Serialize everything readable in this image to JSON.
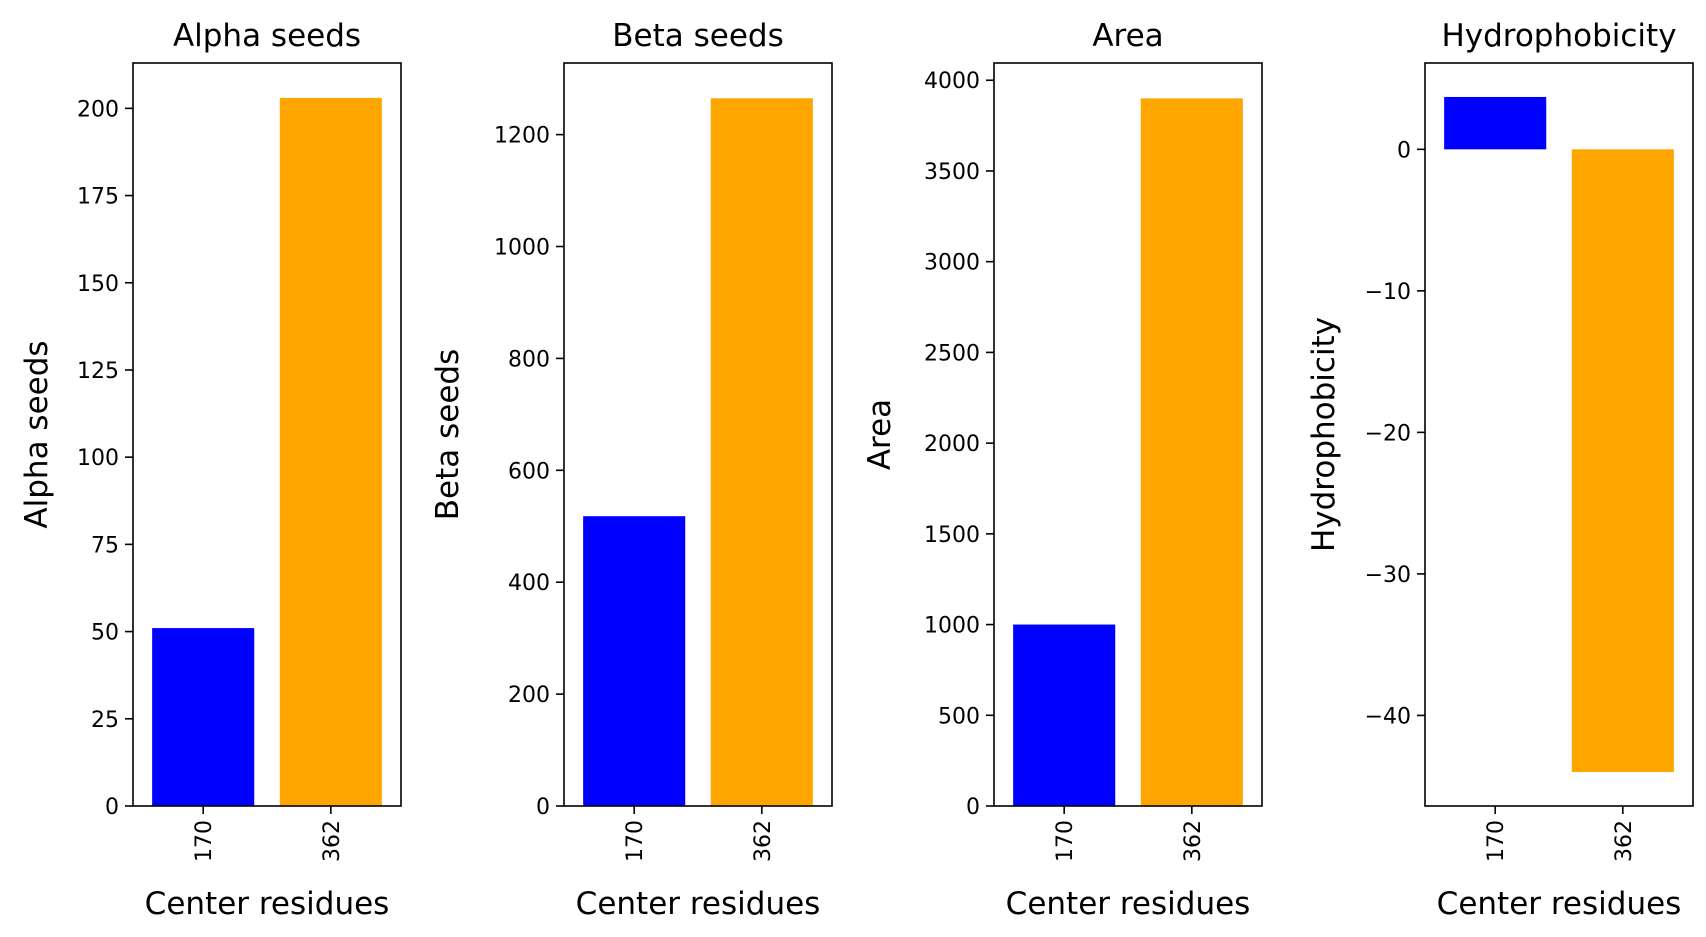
{
  "chart_data": [
    {
      "type": "bar",
      "title": "Alpha seeds",
      "xlabel": "Center residues",
      "ylabel": "Alpha seeds",
      "categories": [
        "170",
        "362"
      ],
      "values": [
        51,
        203
      ],
      "colors": [
        "#0000ff",
        "#ffa500"
      ],
      "ylim": [
        0,
        213
      ],
      "yticks": [
        0,
        25,
        50,
        75,
        100,
        125,
        150,
        175,
        200
      ],
      "ytick_labels": [
        "0",
        "25",
        "50",
        "75",
        "100",
        "125",
        "150",
        "175",
        "200"
      ],
      "grid": false
    },
    {
      "type": "bar",
      "title": "Beta seeds",
      "xlabel": "Center residues",
      "ylabel": "Beta seeds",
      "categories": [
        "170",
        "362"
      ],
      "values": [
        518,
        1265
      ],
      "colors": [
        "#0000ff",
        "#ffa500"
      ],
      "ylim": [
        0,
        1328
      ],
      "yticks": [
        0,
        200,
        400,
        600,
        800,
        1000,
        1200
      ],
      "ytick_labels": [
        "0",
        "200",
        "400",
        "600",
        "800",
        "1000",
        "1200"
      ],
      "grid": false
    },
    {
      "type": "bar",
      "title": "Area",
      "xlabel": "Center residues",
      "ylabel": "Area",
      "categories": [
        "170",
        "362"
      ],
      "values": [
        1000,
        3900
      ],
      "colors": [
        "#0000ff",
        "#ffa500"
      ],
      "ylim": [
        0,
        4095
      ],
      "yticks": [
        0,
        500,
        1000,
        1500,
        2000,
        2500,
        3000,
        3500,
        4000
      ],
      "ytick_labels": [
        "0",
        "500",
        "1000",
        "1500",
        "2000",
        "2500",
        "3000",
        "3500",
        "4000"
      ],
      "grid": false
    },
    {
      "type": "bar",
      "title": "Hydrophobicity",
      "xlabel": "Center residues",
      "ylabel": "Hydrophobicity",
      "categories": [
        "170",
        "362"
      ],
      "values": [
        3.7,
        -44
      ],
      "colors": [
        "#0000ff",
        "#ffa500"
      ],
      "ylim": [
        -46.4,
        6.1
      ],
      "yticks": [
        0,
        -10,
        -20,
        -30,
        -40
      ],
      "ytick_labels": [
        "0",
        "−10",
        "−20",
        "−30",
        "−40"
      ],
      "grid": false
    }
  ]
}
